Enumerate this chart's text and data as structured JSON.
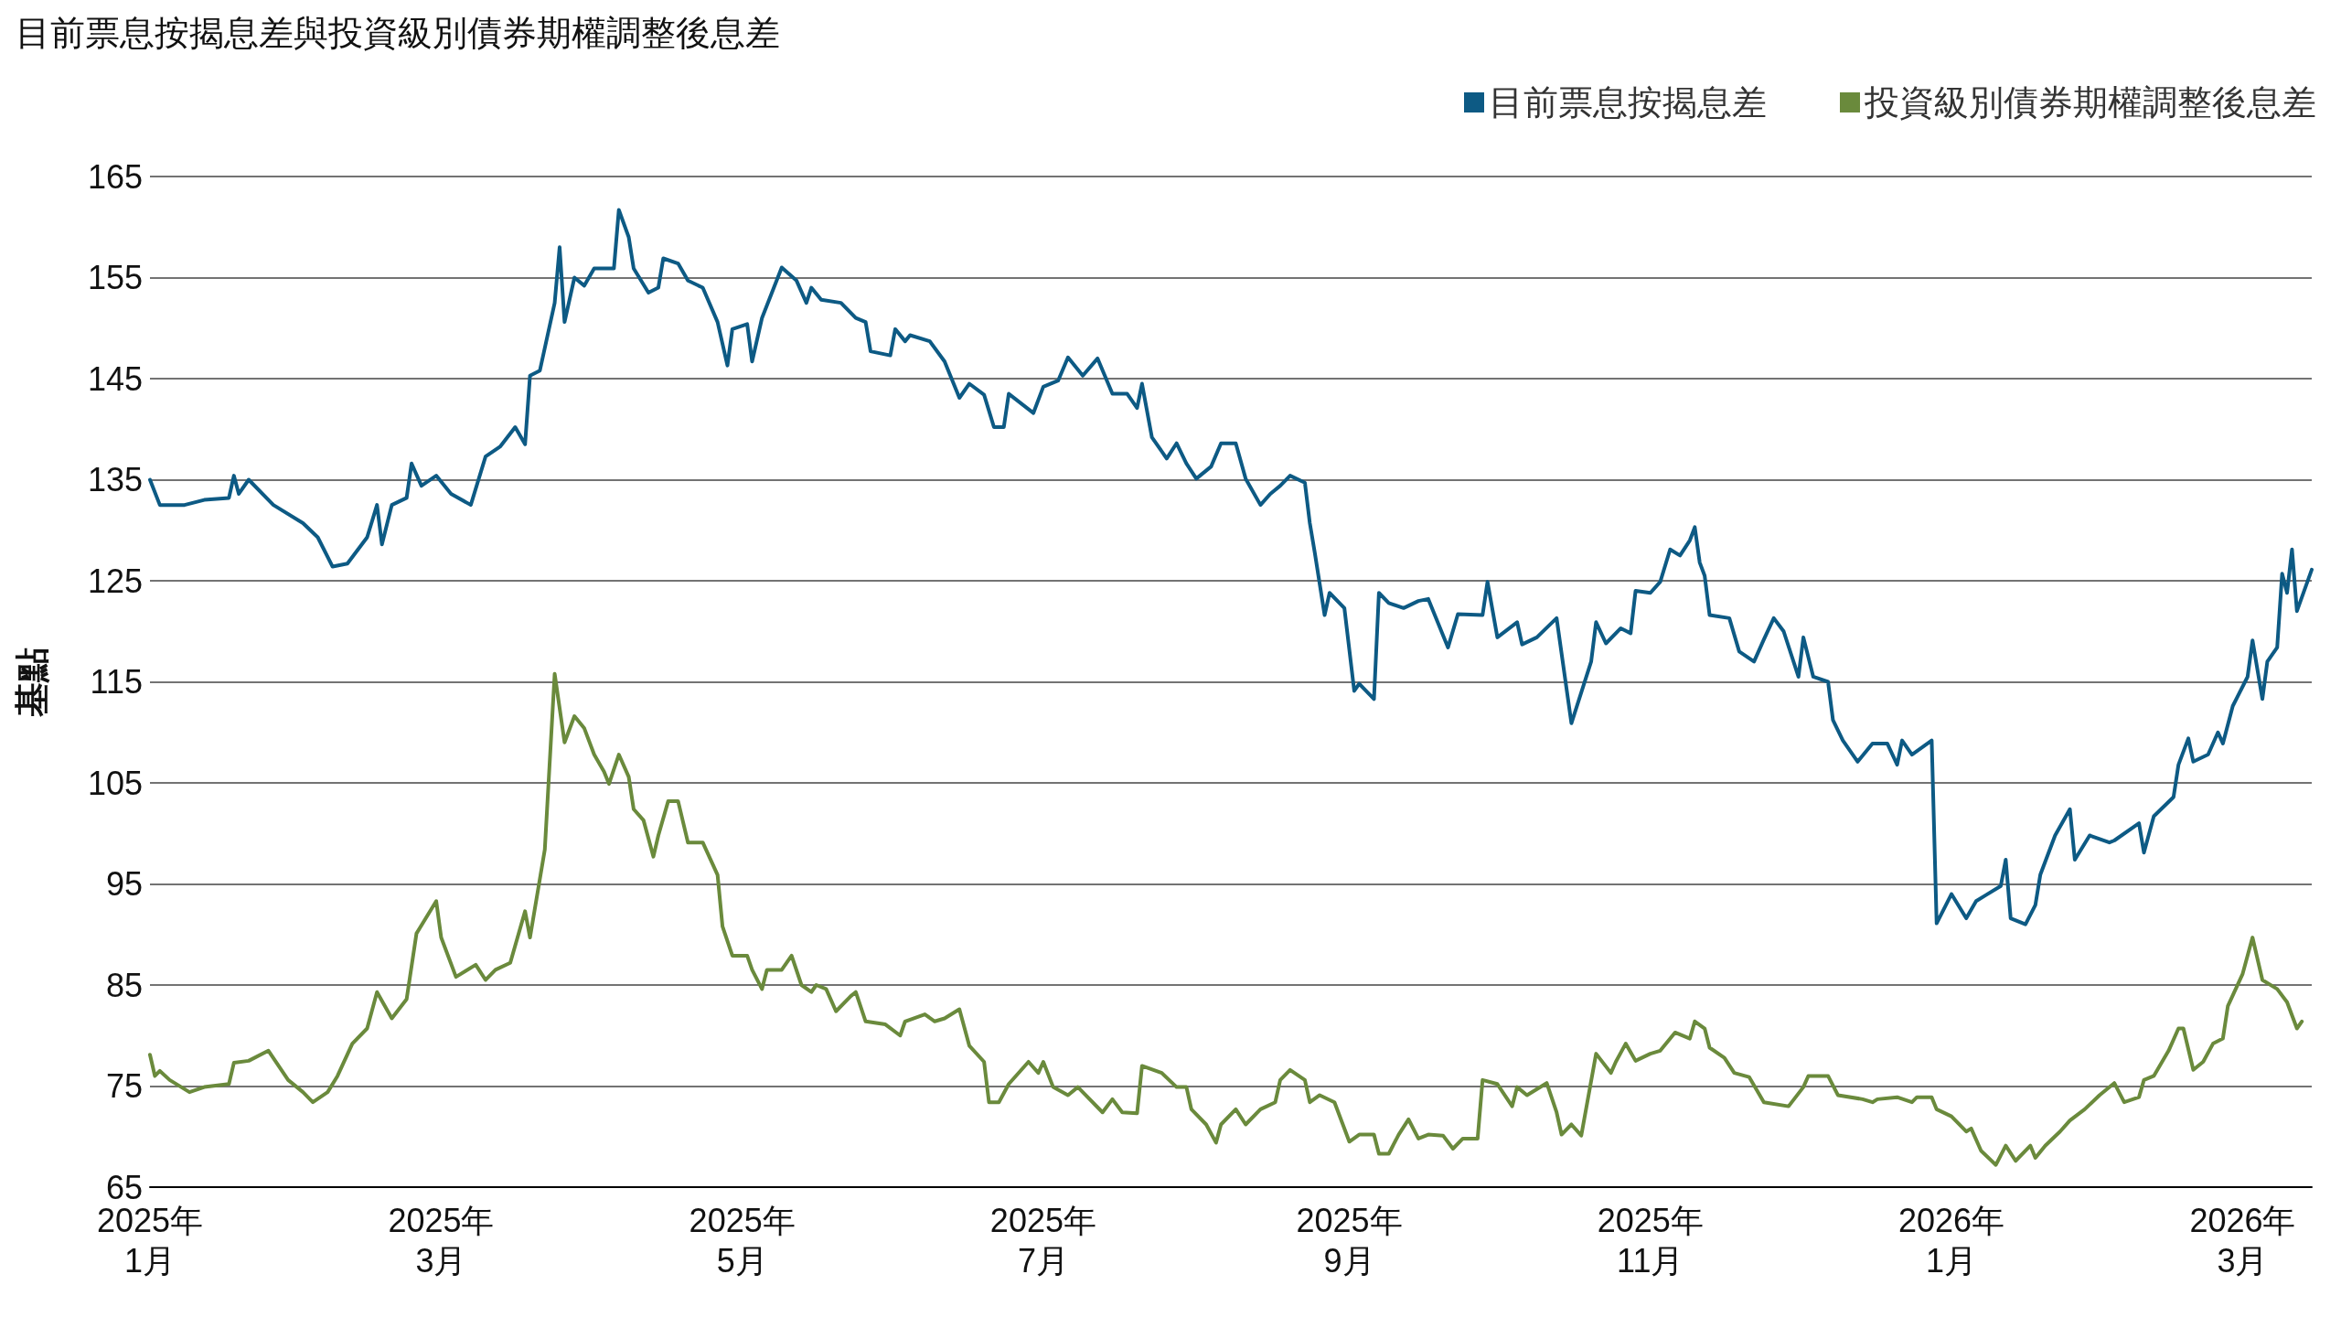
{
  "chart_data": {
    "type": "line",
    "title": "目前票息按揭息差與投資級別債券期權調整後息差",
    "ylabel": "基點",
    "legend": "top right",
    "grid": "y",
    "line_style": "solid",
    "xlim": [
      "2025-01-01",
      "2026-03-15"
    ],
    "xticks": [
      {
        "value": "2025-01-01",
        "label": "2025年\n1月"
      },
      {
        "value": "2025-03-01",
        "label": "2025年\n3月"
      },
      {
        "value": "2025-05-01",
        "label": "2025年\n5月"
      },
      {
        "value": "2025-07-01",
        "label": "2025年\n7月"
      },
      {
        "value": "2025-09-01",
        "label": "2025年\n9月"
      },
      {
        "value": "2025-11-01",
        "label": "2025年\n11月"
      },
      {
        "value": "2026-01-01",
        "label": "2026年\n1月"
      },
      {
        "value": "2026-03-01",
        "label": "2026年\n3月"
      }
    ],
    "ylim": [
      65,
      165
    ],
    "yticks": [
      65,
      75,
      85,
      95,
      105,
      115,
      125,
      135,
      145,
      155,
      165
    ],
    "series": [
      {
        "name": "目前票息按揭息差",
        "color": "#0d5a84",
        "x": [
          "2025-01-01",
          "2025-01-03",
          "2025-01-08",
          "2025-01-12",
          "2025-01-17",
          "2025-01-18",
          "2025-01-19",
          "2025-01-21",
          "2025-01-26",
          "2025-02-01",
          "2025-02-04",
          "2025-02-07",
          "2025-02-10",
          "2025-02-14",
          "2025-02-16",
          "2025-02-17",
          "2025-02-19",
          "2025-02-22",
          "2025-02-23",
          "2025-02-25",
          "2025-02-28",
          "2025-03-03",
          "2025-03-07",
          "2025-03-10",
          "2025-03-13",
          "2025-03-16",
          "2025-03-18",
          "2025-03-19",
          "2025-03-21",
          "2025-03-24",
          "2025-03-25",
          "2025-03-26",
          "2025-03-28",
          "2025-03-30",
          "2025-04-01",
          "2025-04-05",
          "2025-04-06",
          "2025-04-08",
          "2025-04-09",
          "2025-04-12",
          "2025-04-14",
          "2025-04-15",
          "2025-04-18",
          "2025-04-20",
          "2025-04-23",
          "2025-04-26",
          "2025-04-28",
          "2025-04-29",
          "2025-05-02",
          "2025-05-03",
          "2025-05-05",
          "2025-05-09",
          "2025-05-12",
          "2025-05-14",
          "2025-05-15",
          "2025-05-17",
          "2025-05-21",
          "2025-05-24",
          "2025-05-26",
          "2025-05-27",
          "2025-05-31",
          "2025-06-01",
          "2025-06-03",
          "2025-06-04",
          "2025-06-08",
          "2025-06-11",
          "2025-06-14",
          "2025-06-16",
          "2025-06-19",
          "2025-06-21",
          "2025-06-23",
          "2025-06-24",
          "2025-06-29",
          "2025-07-01",
          "2025-07-04",
          "2025-07-06",
          "2025-07-09",
          "2025-07-12",
          "2025-07-15",
          "2025-07-18",
          "2025-07-20",
          "2025-07-21",
          "2025-07-23",
          "2025-07-26",
          "2025-07-28",
          "2025-07-30",
          "2025-08-01",
          "2025-08-04",
          "2025-08-06",
          "2025-08-09",
          "2025-08-11",
          "2025-08-14",
          "2025-08-16",
          "2025-08-18",
          "2025-08-20",
          "2025-08-23",
          "2025-08-24",
          "2025-08-25",
          "2025-08-27",
          "2025-08-28",
          "2025-08-31",
          "2025-09-02",
          "2025-09-03",
          "2025-09-06",
          "2025-09-07",
          "2025-09-09",
          "2025-09-12",
          "2025-09-15",
          "2025-09-17",
          "2025-09-21",
          "2025-09-23",
          "2025-09-28",
          "2025-09-29",
          "2025-10-01",
          "2025-10-05",
          "2025-10-06",
          "2025-10-09",
          "2025-10-13",
          "2025-10-16",
          "2025-10-20",
          "2025-10-21",
          "2025-10-23",
          "2025-10-26",
          "2025-10-28",
          "2025-10-29",
          "2025-11-01",
          "2025-11-03",
          "2025-11-05",
          "2025-11-07",
          "2025-11-09",
          "2025-11-10",
          "2025-11-11",
          "2025-11-12",
          "2025-11-13",
          "2025-11-17",
          "2025-11-19",
          "2025-11-22",
          "2025-11-24",
          "2025-11-26",
          "2025-11-28",
          "2025-12-01",
          "2025-12-02",
          "2025-12-04",
          "2025-12-07",
          "2025-12-08",
          "2025-12-10",
          "2025-12-13",
          "2025-12-16",
          "2025-12-19",
          "2025-12-21",
          "2025-12-22",
          "2025-12-24",
          "2025-12-28",
          "2025-12-29",
          "2026-01-01",
          "2026-01-04",
          "2026-01-06",
          "2026-01-08",
          "2026-01-11",
          "2026-01-12",
          "2026-01-13",
          "2026-01-16",
          "2026-01-18",
          "2026-01-19",
          "2026-01-22",
          "2026-01-25",
          "2026-01-26",
          "2026-01-29",
          "2026-02-02",
          "2026-02-03",
          "2026-02-08",
          "2026-02-09",
          "2026-02-11",
          "2026-02-15",
          "2026-02-16",
          "2026-02-18",
          "2026-02-19",
          "2026-02-22",
          "2026-02-24",
          "2026-02-25",
          "2026-02-27",
          "2026-03-02",
          "2026-03-03",
          "2026-03-05",
          "2026-03-06",
          "2026-03-08",
          "2026-03-09",
          "2026-03-10",
          "2026-03-11",
          "2026-03-12",
          "2026-03-15"
        ],
        "values": [
          135,
          132.5,
          132.5,
          133,
          133.2,
          135.4,
          133.6,
          135,
          132.5,
          130.7,
          129.3,
          126.4,
          126.7,
          129.3,
          132.5,
          128.6,
          132.5,
          133.2,
          136.6,
          134.4,
          135.4,
          133.6,
          132.5,
          137.3,
          138.3,
          140.2,
          138.5,
          145.3,
          145.8,
          152.5,
          158,
          150.6,
          155,
          154.2,
          155.9,
          155.9,
          161.7,
          159,
          155.9,
          153.5,
          154,
          156.9,
          156.4,
          154.7,
          154,
          150.6,
          146.3,
          149.9,
          150.4,
          146.7,
          151,
          156,
          154.7,
          152.5,
          154,
          152.8,
          152.5,
          151,
          150.6,
          147.7,
          147.3,
          149.9,
          148.7,
          149.3,
          148.7,
          146.7,
          143.1,
          144.5,
          143.4,
          140.2,
          140.2,
          143.5,
          141.6,
          144.2,
          144.8,
          147.1,
          145.3,
          147,
          143.5,
          143.5,
          142.1,
          144.5,
          139.2,
          137.1,
          138.6,
          136.6,
          135.1,
          136.3,
          138.6,
          138.6,
          135.1,
          132.5,
          133.6,
          134.4,
          135.4,
          134.7,
          130.7,
          127.8,
          121.6,
          123.8,
          122.3,
          114.1,
          114.8,
          113.3,
          123.8,
          122.8,
          122.3,
          123,
          123.2,
          118.4,
          121.7,
          121.6,
          124.9,
          119.4,
          120.9,
          118.7,
          119.4,
          121.3,
          110.9,
          117,
          120.9,
          118.8,
          120.3,
          119.8,
          124,
          123.8,
          124.9,
          128.1,
          127.5,
          129,
          130.3,
          126.8,
          125.5,
          121.6,
          121.3,
          118,
          117,
          119.2,
          121.3,
          120,
          115.5,
          119.4,
          115.5,
          115,
          111.2,
          109.2,
          107.1,
          108.9,
          108.9,
          106.8,
          109.2,
          107.8,
          109.2,
          91.1,
          94,
          91.6,
          93.3,
          93.9,
          94.8,
          97.4,
          91.6,
          91,
          92.9,
          95.9,
          99.8,
          102.4,
          97.4,
          99.8,
          99.1,
          99.3,
          101,
          98.1,
          101.7,
          103.6,
          106.8,
          109.4,
          107.1,
          107.8,
          110,
          108.9,
          112.6,
          115.5,
          119.1,
          113.3,
          117,
          118.4,
          125.7,
          123.8,
          128.1,
          122,
          126.1
        ]
      },
      {
        "name": "投資級別債券期權調整後息差",
        "color": "#6a8a3c",
        "x": [
          "2025-01-01",
          "2025-01-02",
          "2025-01-03",
          "2025-01-05",
          "2025-01-09",
          "2025-01-12",
          "2025-01-17",
          "2025-01-18",
          "2025-01-21",
          "2025-01-25",
          "2025-01-29",
          "2025-02-01",
          "2025-02-03",
          "2025-02-06",
          "2025-02-08",
          "2025-02-11",
          "2025-02-14",
          "2025-02-16",
          "2025-02-19",
          "2025-02-22",
          "2025-02-24",
          "2025-02-28",
          "2025-03-01",
          "2025-03-04",
          "2025-03-08",
          "2025-03-10",
          "2025-03-12",
          "2025-03-15",
          "2025-03-18",
          "2025-03-19",
          "2025-03-22",
          "2025-03-24",
          "2025-03-26",
          "2025-03-28",
          "2025-03-30",
          "2025-04-01",
          "2025-04-03",
          "2025-04-04",
          "2025-04-06",
          "2025-04-08",
          "2025-04-09",
          "2025-04-11",
          "2025-04-13",
          "2025-04-14",
          "2025-04-16",
          "2025-04-18",
          "2025-04-20",
          "2025-04-23",
          "2025-04-26",
          "2025-04-27",
          "2025-04-29",
          "2025-05-02",
          "2025-05-03",
          "2025-05-05",
          "2025-05-06",
          "2025-05-09",
          "2025-05-11",
          "2025-05-13",
          "2025-05-15",
          "2025-05-16",
          "2025-05-18",
          "2025-05-20",
          "2025-05-23",
          "2025-05-24",
          "2025-05-26",
          "2025-05-30",
          "2025-06-02",
          "2025-06-03",
          "2025-06-07",
          "2025-06-09",
          "2025-06-11",
          "2025-06-14",
          "2025-06-16",
          "2025-06-19",
          "2025-06-20",
          "2025-06-22",
          "2025-06-24",
          "2025-06-28",
          "2025-06-30",
          "2025-07-01",
          "2025-07-03",
          "2025-07-06",
          "2025-07-08",
          "2025-07-13",
          "2025-07-15",
          "2025-07-17",
          "2025-07-20",
          "2025-07-21",
          "2025-07-25",
          "2025-07-28",
          "2025-07-30",
          "2025-07-31",
          "2025-08-03",
          "2025-08-05",
          "2025-08-06",
          "2025-08-09",
          "2025-08-11",
          "2025-08-14",
          "2025-08-17",
          "2025-08-18",
          "2025-08-20",
          "2025-08-23",
          "2025-08-24",
          "2025-08-26",
          "2025-08-29",
          "2025-09-01",
          "2025-09-03",
          "2025-09-06",
          "2025-09-07",
          "2025-09-09",
          "2025-09-11",
          "2025-09-13",
          "2025-09-15",
          "2025-09-17",
          "2025-09-20",
          "2025-09-22",
          "2025-09-24",
          "2025-09-27",
          "2025-09-28",
          "2025-10-01",
          "2025-10-04",
          "2025-10-05",
          "2025-10-07",
          "2025-10-11",
          "2025-10-13",
          "2025-10-14",
          "2025-10-16",
          "2025-10-18",
          "2025-10-21",
          "2025-10-24",
          "2025-10-25",
          "2025-10-27",
          "2025-10-29",
          "2025-11-01",
          "2025-11-03",
          "2025-11-06",
          "2025-11-09",
          "2025-11-10",
          "2025-11-12",
          "2025-11-13",
          "2025-11-16",
          "2025-11-18",
          "2025-11-21",
          "2025-11-24",
          "2025-11-29",
          "2025-12-02",
          "2025-12-03",
          "2025-12-07",
          "2025-12-09",
          "2025-12-14",
          "2025-12-16",
          "2025-12-17",
          "2025-12-21",
          "2025-12-24",
          "2025-12-25",
          "2025-12-28",
          "2025-12-29",
          "2026-01-01",
          "2026-01-04",
          "2026-01-05",
          "2026-01-07",
          "2026-01-10",
          "2026-01-12",
          "2026-01-14",
          "2026-01-17",
          "2026-01-18",
          "2026-01-20",
          "2026-01-23",
          "2026-01-25",
          "2026-01-28",
          "2026-01-31",
          "2026-02-03",
          "2026-02-05",
          "2026-02-08",
          "2026-02-09",
          "2026-02-11",
          "2026-02-14",
          "2026-02-16",
          "2026-02-17",
          "2026-02-19",
          "2026-02-21",
          "2026-02-23",
          "2026-02-25",
          "2026-02-26",
          "2026-03-01",
          "2026-03-03",
          "2026-03-05",
          "2026-03-08",
          "2026-03-10",
          "2026-03-12",
          "2026-03-13"
        ],
        "values": [
          78.1,
          76,
          76.5,
          75.6,
          74.4,
          74.9,
          75.2,
          77.3,
          77.5,
          78.5,
          75.6,
          74.4,
          73.4,
          74.4,
          76,
          79.2,
          80.7,
          84.3,
          81.7,
          83.6,
          90.1,
          93.3,
          89.7,
          85.8,
          87,
          85.5,
          86.5,
          87.2,
          92.3,
          89.7,
          98.4,
          115.8,
          109,
          111.6,
          110.4,
          107.8,
          106.1,
          104.9,
          107.8,
          105.6,
          102.4,
          101.3,
          97.7,
          99.8,
          103.2,
          103.2,
          99.1,
          99.1,
          95.9,
          90.8,
          87.9,
          87.9,
          86.5,
          84.6,
          86.5,
          86.5,
          87.9,
          85,
          84.3,
          85,
          84.6,
          82.4,
          83.9,
          84.3,
          81.4,
          81.1,
          80,
          81.4,
          82.1,
          81.4,
          81.7,
          82.6,
          79,
          77.4,
          73.4,
          73.4,
          75.2,
          77.4,
          76.3,
          77.4,
          74.9,
          74.1,
          74.9,
          72.4,
          73.7,
          72.4,
          72.3,
          77,
          76.3,
          74.9,
          74.9,
          72.7,
          71.2,
          69.4,
          71.2,
          72.7,
          71.2,
          72.7,
          73.4,
          75.6,
          76.6,
          75.6,
          73.4,
          74.1,
          73.4,
          69.5,
          70.2,
          70.2,
          68.3,
          68.3,
          70.2,
          71.7,
          69.8,
          70.2,
          70.1,
          68.8,
          69.8,
          69.8,
          75.6,
          75.2,
          73,
          74.9,
          74.1,
          75.3,
          72.4,
          70.2,
          71.2,
          70.1,
          78.2,
          76.3,
          77.4,
          79.2,
          77.5,
          78.2,
          78.5,
          80.3,
          79.7,
          81.4,
          80.7,
          78.8,
          77.8,
          76.3,
          75.9,
          73.4,
          73,
          74.9,
          76,
          76,
          74.1,
          73.7,
          73.4,
          73.7,
          73.9,
          73.4,
          73.9,
          73.9,
          72.7,
          72,
          70.5,
          70.8,
          68.6,
          67.2,
          69.1,
          67.6,
          69.1,
          67.9,
          69.1,
          70.5,
          71.6,
          72.7,
          74.1,
          75.3,
          73.4,
          73.9,
          75.6,
          76,
          78.5,
          80.7,
          80.7,
          76.6,
          77.4,
          79.2,
          79.7,
          82.9,
          86.1,
          89.7,
          85.5,
          84.6,
          83.3,
          80.7,
          81.4
        ]
      }
    ]
  }
}
